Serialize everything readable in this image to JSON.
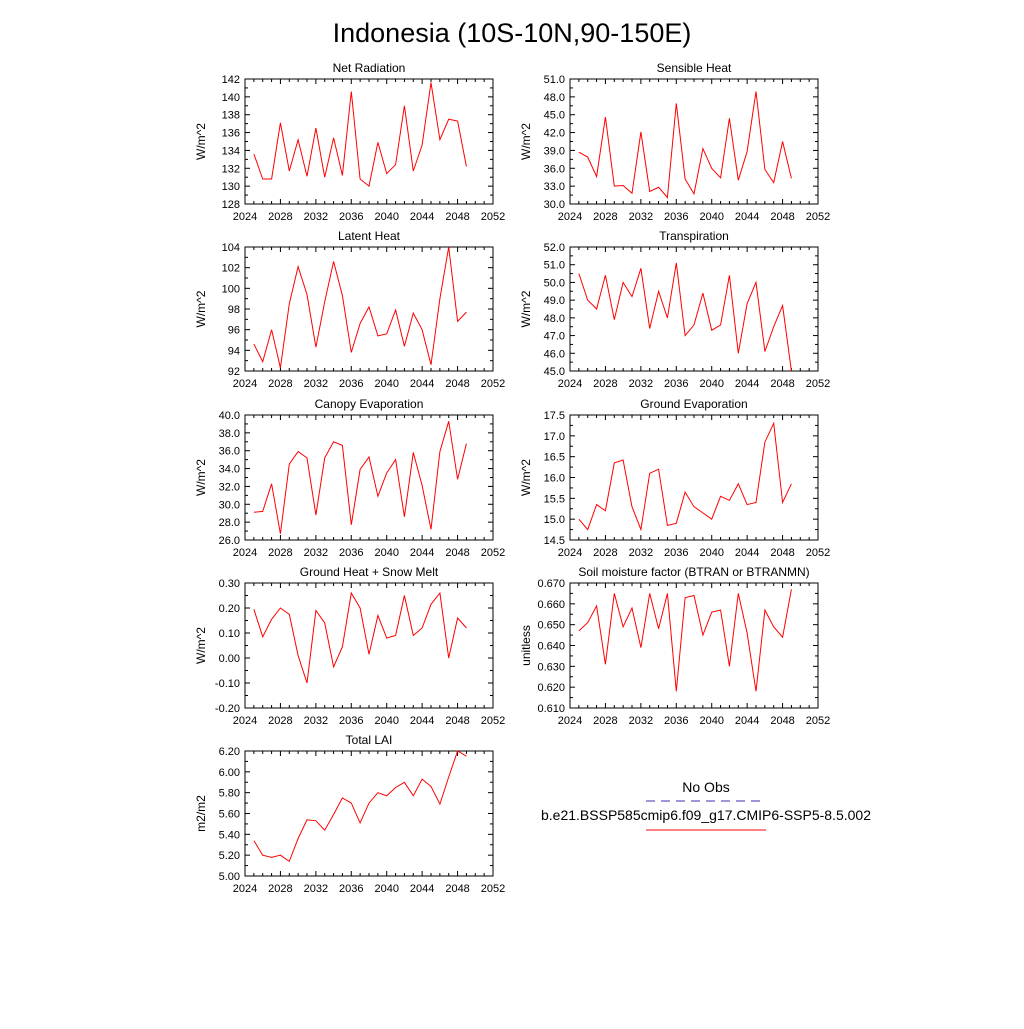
{
  "figure": {
    "title": "Indonesia (10S-10N,90-150E)"
  },
  "legend": {
    "entries": [
      {
        "label": "No Obs",
        "color": "#3a2fb0",
        "style": "dashed"
      },
      {
        "label": "b.e21.BSSP585cmip6.f09_g17.CMIP6-SSP5-8.5.002",
        "color": "#ff0000",
        "style": "solid"
      }
    ]
  },
  "chart_data": [
    {
      "type": "line",
      "title": "Net Radiation",
      "ylabel": "W/m^2",
      "xlim": [
        2024,
        2052
      ],
      "ylim": [
        128,
        142
      ],
      "xticks": [
        "2024",
        "2028",
        "2032",
        "2036",
        "2040",
        "2044",
        "2048",
        "2052"
      ],
      "yticks": [
        "128",
        "130",
        "132",
        "134",
        "136",
        "138",
        "140",
        "142"
      ],
      "x": [
        2025,
        2026,
        2027,
        2028,
        2029,
        2030,
        2031,
        2032,
        2033,
        2034,
        2035,
        2036,
        2037,
        2038,
        2039,
        2040,
        2041,
        2042,
        2043,
        2044,
        2045,
        2046,
        2047,
        2048,
        2049
      ],
      "series": [
        {
          "color": "#ff0000",
          "values": [
            133.6,
            130.8,
            130.8,
            137.1,
            131.7,
            135.2,
            131.1,
            136.5,
            131.0,
            135.4,
            131.2,
            140.6,
            130.8,
            130.0,
            134.9,
            131.4,
            132.4,
            139.0,
            131.7,
            134.6,
            141.6,
            135.2,
            137.5,
            137.3,
            132.2
          ]
        }
      ]
    },
    {
      "type": "line",
      "title": "Sensible Heat",
      "ylabel": "W/m^2",
      "xlim": [
        2024,
        2052
      ],
      "ylim": [
        30,
        51
      ],
      "xticks": [
        "2024",
        "2028",
        "2032",
        "2036",
        "2040",
        "2044",
        "2048",
        "2052"
      ],
      "yticks": [
        "30.0",
        "33.0",
        "36.0",
        "39.0",
        "42.0",
        "45.0",
        "48.0",
        "51.0"
      ],
      "x": [
        2025,
        2026,
        2027,
        2028,
        2029,
        2030,
        2031,
        2032,
        2033,
        2034,
        2035,
        2036,
        2037,
        2038,
        2039,
        2040,
        2041,
        2042,
        2043,
        2044,
        2045,
        2046,
        2047,
        2048,
        2049
      ],
      "series": [
        {
          "color": "#ff0000",
          "values": [
            38.7,
            37.9,
            34.6,
            44.6,
            33.0,
            33.1,
            31.8,
            42.1,
            32.1,
            32.8,
            31.1,
            46.9,
            34.2,
            31.7,
            39.3,
            36.0,
            34.4,
            44.4,
            34.0,
            38.8,
            48.9,
            35.8,
            33.6,
            40.5,
            34.3
          ]
        }
      ]
    },
    {
      "type": "line",
      "title": "Latent Heat",
      "ylabel": "W/m^2",
      "xlim": [
        2024,
        2052
      ],
      "ylim": [
        92,
        104
      ],
      "xticks": [
        "2024",
        "2028",
        "2032",
        "2036",
        "2040",
        "2044",
        "2048",
        "2052"
      ],
      "yticks": [
        "92",
        "94",
        "96",
        "98",
        "100",
        "102",
        "104"
      ],
      "x": [
        2025,
        2026,
        2027,
        2028,
        2029,
        2030,
        2031,
        2032,
        2033,
        2034,
        2035,
        2036,
        2037,
        2038,
        2039,
        2040,
        2041,
        2042,
        2043,
        2044,
        2045,
        2046,
        2047,
        2048,
        2049
      ],
      "series": [
        {
          "color": "#ff0000",
          "values": [
            94.6,
            92.9,
            96.0,
            92.3,
            98.5,
            102.1,
            99.4,
            94.3,
            98.7,
            102.6,
            99.3,
            93.8,
            96.6,
            98.2,
            95.4,
            95.6,
            97.9,
            94.4,
            97.6,
            96.0,
            92.6,
            99.0,
            104.0,
            96.8,
            97.7
          ]
        }
      ]
    },
    {
      "type": "line",
      "title": "Transpiration",
      "ylabel": "W/m^2",
      "xlim": [
        2024,
        2052
      ],
      "ylim": [
        45,
        52
      ],
      "xticks": [
        "2024",
        "2028",
        "2032",
        "2036",
        "2040",
        "2044",
        "2048",
        "2052"
      ],
      "yticks": [
        "45.0",
        "46.0",
        "47.0",
        "48.0",
        "49.0",
        "50.0",
        "51.0",
        "52.0"
      ],
      "x": [
        2025,
        2026,
        2027,
        2028,
        2029,
        2030,
        2031,
        2032,
        2033,
        2034,
        2035,
        2036,
        2037,
        2038,
        2039,
        2040,
        2041,
        2042,
        2043,
        2044,
        2045,
        2046,
        2047,
        2048,
        2049
      ],
      "series": [
        {
          "color": "#ff0000",
          "values": [
            50.5,
            49.0,
            48.5,
            50.4,
            47.9,
            50.0,
            49.2,
            50.8,
            47.4,
            49.5,
            48.0,
            51.1,
            47.0,
            47.6,
            49.4,
            47.3,
            47.6,
            50.4,
            46.0,
            48.8,
            50.0,
            46.1,
            47.5,
            48.7,
            45.0
          ]
        }
      ]
    },
    {
      "type": "line",
      "title": "Canopy Evaporation",
      "ylabel": "W/m^2",
      "xlim": [
        2024,
        2052
      ],
      "ylim": [
        26,
        40
      ],
      "xticks": [
        "2024",
        "2028",
        "2032",
        "2036",
        "2040",
        "2044",
        "2048",
        "2052"
      ],
      "yticks": [
        "26.0",
        "28.0",
        "30.0",
        "32.0",
        "34.0",
        "36.0",
        "38.0",
        "40.0"
      ],
      "x": [
        2025,
        2026,
        2027,
        2028,
        2029,
        2030,
        2031,
        2032,
        2033,
        2034,
        2035,
        2036,
        2037,
        2038,
        2039,
        2040,
        2041,
        2042,
        2043,
        2044,
        2045,
        2046,
        2047,
        2048,
        2049
      ],
      "series": [
        {
          "color": "#ff0000",
          "values": [
            29.1,
            29.2,
            32.3,
            26.7,
            34.5,
            35.9,
            35.2,
            28.8,
            35.2,
            37.0,
            36.6,
            27.7,
            33.9,
            35.3,
            30.9,
            33.5,
            35.0,
            28.6,
            35.8,
            32.1,
            27.2,
            35.9,
            39.3,
            32.8,
            36.8
          ]
        }
      ]
    },
    {
      "type": "line",
      "title": "Ground Evaporation",
      "ylabel": "W/m^2",
      "xlim": [
        2024,
        2052
      ],
      "ylim": [
        14.5,
        17.5
      ],
      "xticks": [
        "2024",
        "2028",
        "2032",
        "2036",
        "2040",
        "2044",
        "2048",
        "2052"
      ],
      "yticks": [
        "14.5",
        "15.0",
        "15.5",
        "16.0",
        "16.5",
        "17.0",
        "17.5"
      ],
      "x": [
        2025,
        2026,
        2027,
        2028,
        2029,
        2030,
        2031,
        2032,
        2033,
        2034,
        2035,
        2036,
        2037,
        2038,
        2039,
        2040,
        2041,
        2042,
        2043,
        2044,
        2045,
        2046,
        2047,
        2048,
        2049
      ],
      "series": [
        {
          "color": "#ff0000",
          "values": [
            15.0,
            14.75,
            15.35,
            15.2,
            16.35,
            16.42,
            15.3,
            14.75,
            16.1,
            16.2,
            14.85,
            14.9,
            15.65,
            15.3,
            15.15,
            15.0,
            15.55,
            15.45,
            15.85,
            15.35,
            15.4,
            16.85,
            17.3,
            15.4,
            15.85
          ]
        }
      ]
    },
    {
      "type": "line",
      "title": "Ground Heat + Snow Melt",
      "ylabel": "W/m^2",
      "xlim": [
        2024,
        2052
      ],
      "ylim": [
        -0.2,
        0.3
      ],
      "xticks": [
        "2024",
        "2028",
        "2032",
        "2036",
        "2040",
        "2044",
        "2048",
        "2052"
      ],
      "yticks": [
        "-0.20",
        "-0.10",
        "0.00",
        "0.10",
        "0.20",
        "0.30"
      ],
      "x": [
        2025,
        2026,
        2027,
        2028,
        2029,
        2030,
        2031,
        2032,
        2033,
        2034,
        2035,
        2036,
        2037,
        2038,
        2039,
        2040,
        2041,
        2042,
        2043,
        2044,
        2045,
        2046,
        2047,
        2048,
        2049
      ],
      "series": [
        {
          "color": "#ff0000",
          "values": [
            0.195,
            0.085,
            0.155,
            0.2,
            0.175,
            0.01,
            -0.1,
            0.19,
            0.14,
            -0.035,
            0.045,
            0.26,
            0.2,
            0.015,
            0.17,
            0.08,
            0.09,
            0.25,
            0.09,
            0.12,
            0.215,
            0.26,
            0.0,
            0.16,
            0.12
          ]
        }
      ]
    },
    {
      "type": "line",
      "title": "Soil moisture factor (BTRAN or BTRANMN)",
      "ylabel": "unitless",
      "xlim": [
        2024,
        2052
      ],
      "ylim": [
        0.61,
        0.67
      ],
      "xticks": [
        "2024",
        "2028",
        "2032",
        "2036",
        "2040",
        "2044",
        "2048",
        "2052"
      ],
      "yticks": [
        "0.610",
        "0.620",
        "0.630",
        "0.640",
        "0.650",
        "0.660",
        "0.670"
      ],
      "x": [
        2025,
        2026,
        2027,
        2028,
        2029,
        2030,
        2031,
        2032,
        2033,
        2034,
        2035,
        2036,
        2037,
        2038,
        2039,
        2040,
        2041,
        2042,
        2043,
        2044,
        2045,
        2046,
        2047,
        2048,
        2049
      ],
      "series": [
        {
          "color": "#ff0000",
          "values": [
            0.647,
            0.651,
            0.659,
            0.631,
            0.665,
            0.649,
            0.658,
            0.639,
            0.665,
            0.648,
            0.665,
            0.618,
            0.663,
            0.664,
            0.645,
            0.656,
            0.657,
            0.63,
            0.665,
            0.646,
            0.618,
            0.657,
            0.649,
            0.644,
            0.667
          ]
        }
      ]
    },
    {
      "type": "line",
      "title": "Total LAI",
      "ylabel": "m2/m2",
      "xlim": [
        2024,
        2052
      ],
      "ylim": [
        5.0,
        6.2
      ],
      "xticks": [
        "2024",
        "2028",
        "2032",
        "2036",
        "2040",
        "2044",
        "2048",
        "2052"
      ],
      "yticks": [
        "5.00",
        "5.20",
        "5.40",
        "5.60",
        "5.80",
        "6.00",
        "6.20"
      ],
      "x": [
        2025,
        2026,
        2027,
        2028,
        2029,
        2030,
        2031,
        2032,
        2033,
        2034,
        2035,
        2036,
        2037,
        2038,
        2039,
        2040,
        2041,
        2042,
        2043,
        2044,
        2045,
        2046,
        2047,
        2048,
        2049
      ],
      "series": [
        {
          "color": "#ff0000",
          "values": [
            5.34,
            5.2,
            5.18,
            5.2,
            5.14,
            5.36,
            5.54,
            5.53,
            5.44,
            5.59,
            5.75,
            5.7,
            5.51,
            5.7,
            5.8,
            5.77,
            5.85,
            5.9,
            5.77,
            5.93,
            5.86,
            5.69,
            5.95,
            6.2,
            6.15
          ]
        }
      ]
    }
  ]
}
